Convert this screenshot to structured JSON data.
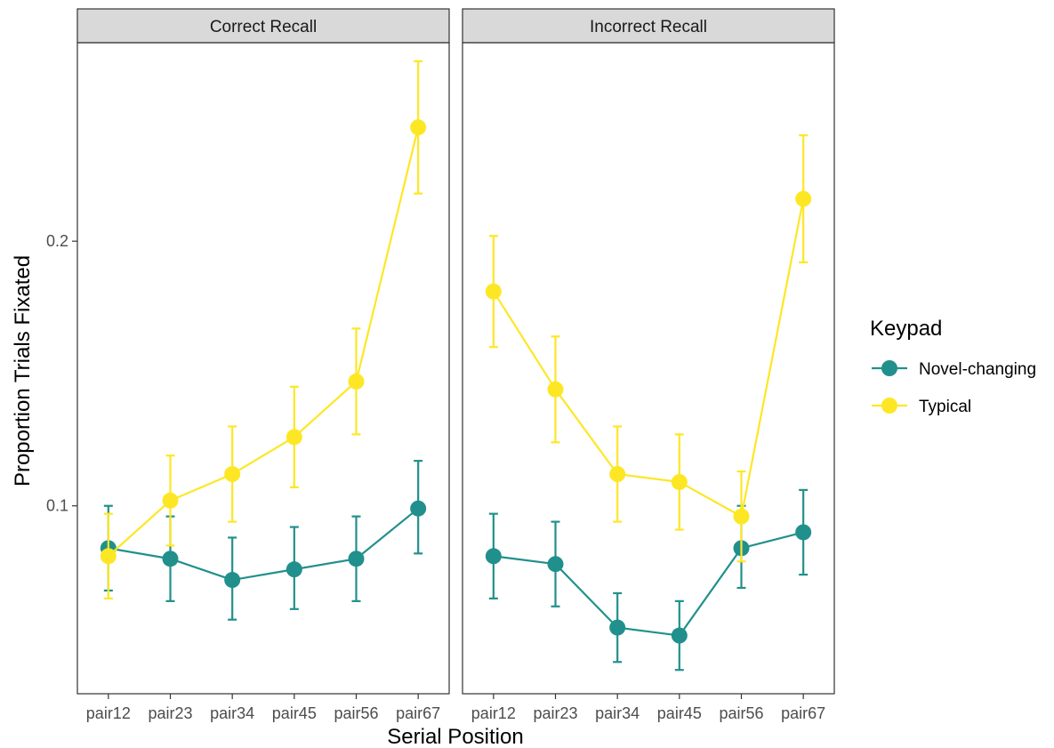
{
  "chart_data": {
    "type": "line",
    "facets": [
      "Correct Recall",
      "Incorrect Recall"
    ],
    "categories": [
      "pair12",
      "pair23",
      "pair34",
      "pair45",
      "pair56",
      "pair67"
    ],
    "xlabel": "Serial Position",
    "ylabel": "Proportion Trials Fixated",
    "ylim": [
      0.029,
      0.275
    ],
    "yticks": [
      0.1,
      0.2
    ],
    "ytick_labels": [
      "0.1",
      "0.2"
    ],
    "grid": false,
    "legend": {
      "title": "Keypad",
      "placement": "right"
    },
    "series": [
      {
        "name": "Novel-changing",
        "color": "#21908C",
        "panels": [
          {
            "values": [
              0.084,
              0.08,
              0.072,
              0.076,
              0.08,
              0.099
            ],
            "lower": [
              0.068,
              0.064,
              0.057,
              0.061,
              0.064,
              0.082
            ],
            "upper": [
              0.1,
              0.096,
              0.088,
              0.092,
              0.096,
              0.117
            ]
          },
          {
            "values": [
              0.081,
              0.078,
              0.054,
              0.051,
              0.084,
              0.09
            ],
            "lower": [
              0.065,
              0.062,
              0.041,
              0.038,
              0.069,
              0.074
            ],
            "upper": [
              0.097,
              0.094,
              0.067,
              0.064,
              0.1,
              0.106
            ]
          }
        ]
      },
      {
        "name": "Typical",
        "color": "#FDE725",
        "panels": [
          {
            "values": [
              0.081,
              0.102,
              0.112,
              0.126,
              0.147,
              0.243
            ],
            "lower": [
              0.065,
              0.085,
              0.094,
              0.107,
              0.127,
              0.218
            ],
            "upper": [
              0.097,
              0.119,
              0.13,
              0.145,
              0.167,
              0.268
            ]
          },
          {
            "values": [
              0.181,
              0.144,
              0.112,
              0.109,
              0.096,
              0.216
            ],
            "lower": [
              0.16,
              0.124,
              0.094,
              0.091,
              0.079,
              0.192
            ],
            "upper": [
              0.202,
              0.164,
              0.13,
              0.127,
              0.113,
              0.24
            ]
          }
        ]
      }
    ]
  }
}
